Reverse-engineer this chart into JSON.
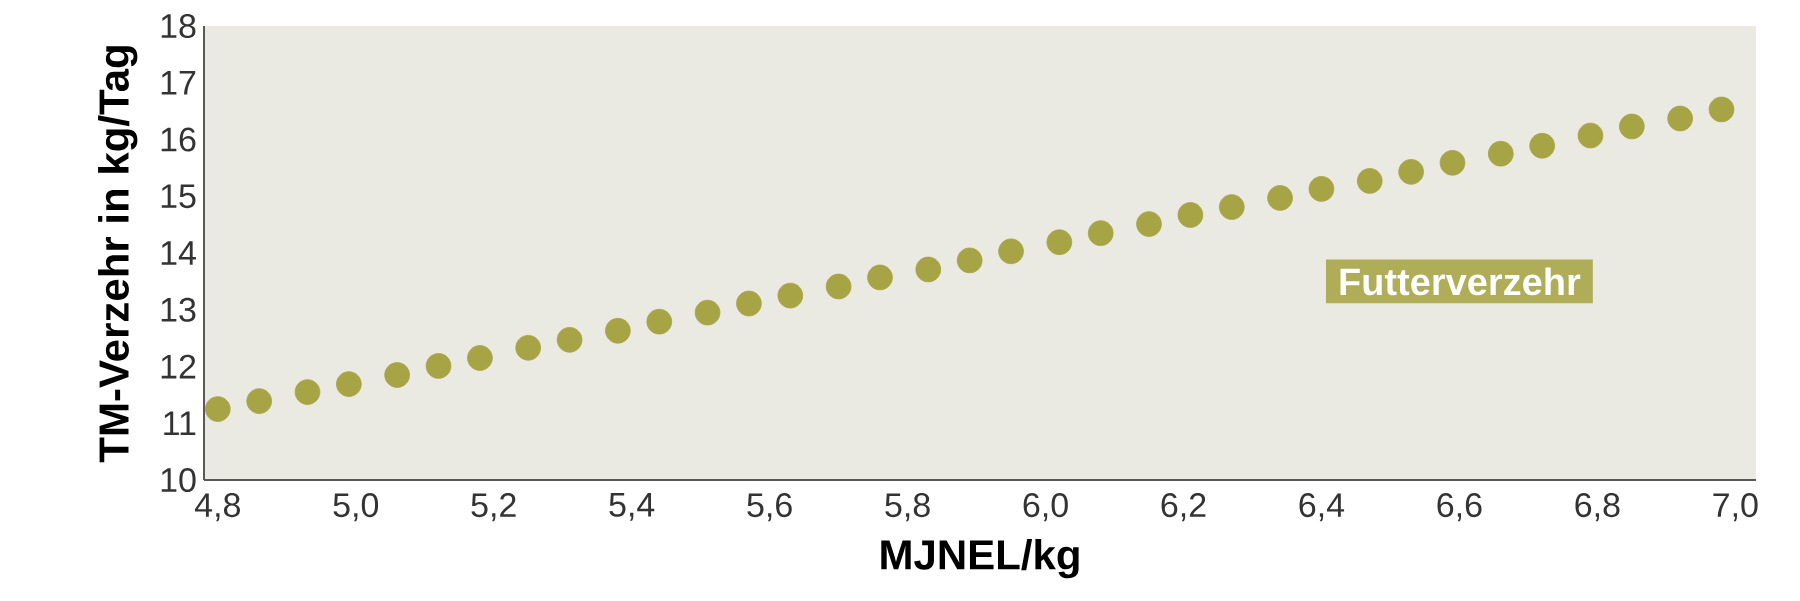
{
  "chart_data": {
    "type": "scatter",
    "xlabel": "MJNEL/kg",
    "ylabel": "TM-Verzehr in kg/Tag",
    "xlim": [
      4.78,
      7.03
    ],
    "ylim": [
      10,
      18
    ],
    "xticks": [
      {
        "value": 4.8,
        "label": "4,8"
      },
      {
        "value": 5.0,
        "label": "5,0"
      },
      {
        "value": 5.2,
        "label": "5,2"
      },
      {
        "value": 5.4,
        "label": "5,4"
      },
      {
        "value": 5.6,
        "label": "5,6"
      },
      {
        "value": 5.8,
        "label": "5,8"
      },
      {
        "value": 6.0,
        "label": "6,0"
      },
      {
        "value": 6.2,
        "label": "6,2"
      },
      {
        "value": 6.4,
        "label": "6,4"
      },
      {
        "value": 6.6,
        "label": "6,6"
      },
      {
        "value": 6.8,
        "label": "6,8"
      },
      {
        "value": 7.0,
        "label": "7,0"
      }
    ],
    "yticks": [
      10,
      11,
      12,
      13,
      14,
      15,
      16,
      17,
      18
    ],
    "marker": "circle",
    "grid": false,
    "legend": false,
    "series": [
      {
        "name": "Futterverzehr",
        "color": "#a6a444",
        "x": [
          4.8,
          4.86,
          4.93,
          4.99,
          5.06,
          5.12,
          5.18,
          5.25,
          5.31,
          5.38,
          5.44,
          5.51,
          5.57,
          5.63,
          5.7,
          5.76,
          5.83,
          5.89,
          5.95,
          6.02,
          6.08,
          6.15,
          6.21,
          6.27,
          6.34,
          6.4,
          6.47,
          6.53,
          6.59,
          6.66,
          6.72,
          6.79,
          6.85,
          6.92,
          6.98
        ],
        "values": [
          11.25,
          11.39,
          11.55,
          11.69,
          11.85,
          12.01,
          12.15,
          12.33,
          12.47,
          12.63,
          12.79,
          12.95,
          13.11,
          13.25,
          13.41,
          13.57,
          13.71,
          13.87,
          14.03,
          14.19,
          14.35,
          14.51,
          14.67,
          14.81,
          14.97,
          15.13,
          15.27,
          15.43,
          15.59,
          15.75,
          15.89,
          16.07,
          16.23,
          16.37,
          16.53
        ]
      }
    ]
  }
}
